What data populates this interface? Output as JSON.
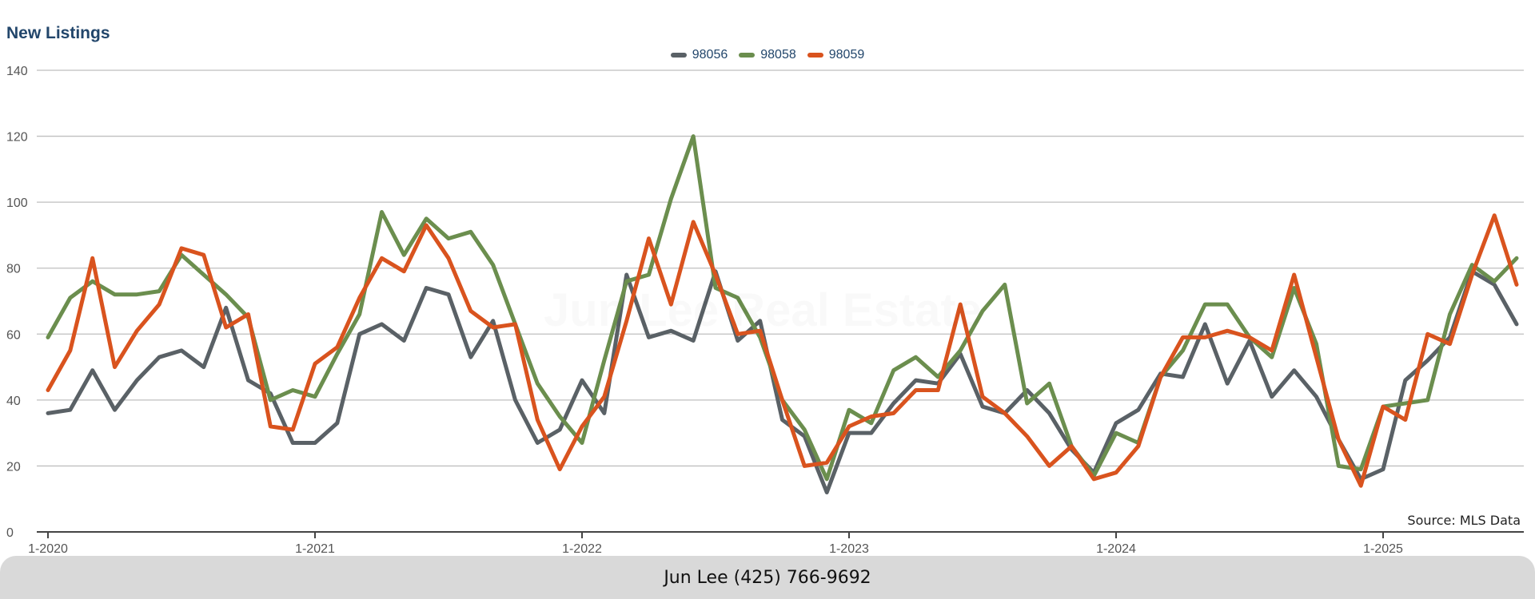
{
  "chart_data": {
    "type": "line",
    "title": "New Listings",
    "watermark": "Jun Lee Real Estate",
    "source_note": "Source: MLS Data",
    "xlabel": "",
    "ylabel": "",
    "ylim": [
      0,
      140
    ],
    "yticks": [
      0,
      20,
      40,
      60,
      80,
      100,
      120,
      140
    ],
    "xtick_labels": [
      "1-2020",
      "1-2021",
      "1-2022",
      "1-2023",
      "1-2024",
      "1-2025"
    ],
    "grid": true,
    "legend_position": "top-center",
    "x_months": [
      "1-2020",
      "2-2020",
      "3-2020",
      "4-2020",
      "5-2020",
      "6-2020",
      "7-2020",
      "8-2020",
      "9-2020",
      "10-2020",
      "11-2020",
      "12-2020",
      "1-2021",
      "2-2021",
      "3-2021",
      "4-2021",
      "5-2021",
      "6-2021",
      "7-2021",
      "8-2021",
      "9-2021",
      "10-2021",
      "11-2021",
      "12-2021",
      "1-2022",
      "2-2022",
      "3-2022",
      "4-2022",
      "5-2022",
      "6-2022",
      "7-2022",
      "8-2022",
      "9-2022",
      "10-2022",
      "11-2022",
      "12-2022",
      "1-2023",
      "2-2023",
      "3-2023",
      "4-2023",
      "5-2023",
      "6-2023",
      "7-2023",
      "8-2023",
      "9-2023",
      "10-2023",
      "11-2023",
      "12-2023",
      "1-2024",
      "2-2024",
      "3-2024",
      "4-2024",
      "5-2024",
      "6-2024",
      "7-2024",
      "8-2024",
      "9-2024",
      "10-2024",
      "11-2024",
      "12-2024",
      "1-2025",
      "2-2025",
      "3-2025",
      "4-2025",
      "5-2025",
      "6-2025",
      "7-2025"
    ],
    "series": [
      {
        "name": "98056",
        "color": "#5a6166",
        "values": [
          36,
          37,
          49,
          37,
          46,
          53,
          55,
          50,
          68,
          46,
          42,
          27,
          27,
          33,
          60,
          63,
          58,
          74,
          72,
          53,
          64,
          40,
          27,
          31,
          46,
          36,
          78,
          59,
          61,
          58,
          79,
          58,
          64,
          34,
          29,
          12,
          30,
          30,
          39,
          46,
          45,
          54,
          38,
          36,
          43,
          36,
          25,
          18,
          33,
          37,
          48,
          47,
          63,
          45,
          58,
          41,
          49,
          41,
          28,
          16,
          19,
          46,
          52,
          59,
          79,
          75,
          63
        ]
      },
      {
        "name": "98058",
        "color": "#6b8e4e",
        "values": [
          59,
          71,
          76,
          72,
          72,
          73,
          84,
          78,
          72,
          65,
          40,
          43,
          41,
          54,
          66,
          97,
          84,
          95,
          89,
          91,
          81,
          63,
          45,
          35,
          27,
          52,
          76,
          78,
          101,
          120,
          74,
          71,
          59,
          40,
          31,
          16,
          37,
          33,
          49,
          53,
          47,
          55,
          67,
          75,
          39,
          45,
          26,
          17,
          30,
          27,
          47,
          55,
          69,
          69,
          59,
          53,
          74,
          57,
          20,
          19,
          38,
          39,
          40,
          66,
          81,
          76,
          83
        ]
      },
      {
        "name": "98059",
        "color": "#d9531e",
        "values": [
          43,
          55,
          83,
          50,
          61,
          69,
          86,
          84,
          62,
          66,
          32,
          31,
          51,
          56,
          71,
          83,
          79,
          93,
          83,
          67,
          62,
          63,
          34,
          19,
          32,
          41,
          64,
          89,
          69,
          94,
          78,
          60,
          61,
          40,
          20,
          21,
          32,
          35,
          36,
          43,
          43,
          69,
          41,
          36,
          29,
          20,
          26,
          16,
          18,
          26,
          47,
          59,
          59,
          61,
          59,
          55,
          78,
          53,
          28,
          14,
          38,
          34,
          60,
          57,
          78,
          96,
          75
        ]
      }
    ]
  },
  "footer": {
    "contact": "Jun Lee (425) 766-9692"
  }
}
